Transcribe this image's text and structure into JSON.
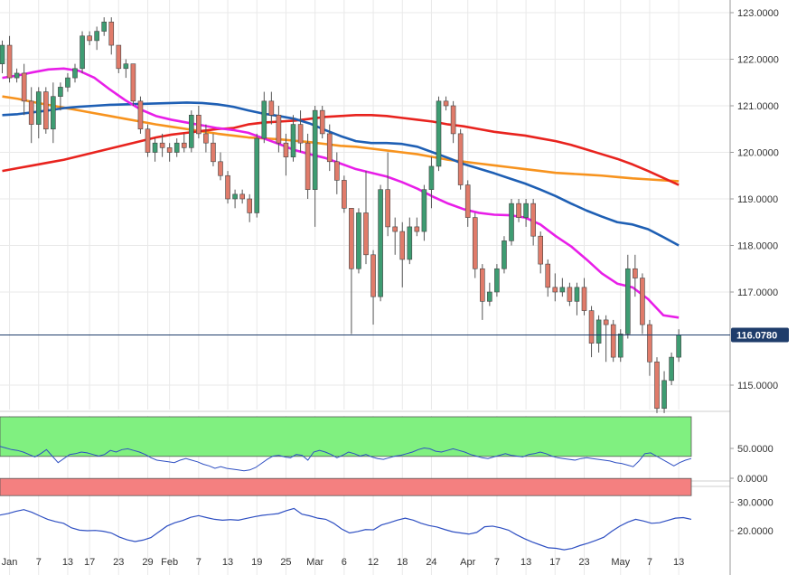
{
  "chart_data": [
    {
      "type": "candlestick",
      "title": "",
      "ylim": [
        114.4,
        123.1
      ],
      "price_ticks": [
        "123.0000",
        "122.0000",
        "121.0000",
        "120.0000",
        "119.0000",
        "118.0000",
        "117.0000",
        "115.0000"
      ],
      "price_tick_values": [
        123,
        122,
        121,
        120,
        119,
        118,
        117,
        115
      ],
      "last_price": "116.0780",
      "last_price_value": 116.078,
      "colors": {
        "up": "#3e9c72",
        "down": "#e07b6a",
        "sma20": "#e81ee8",
        "sma50": "#1e5fb4",
        "sma100": "#e8231e",
        "sma200": "#f7931e",
        "last_line": "#1f3d6b",
        "last_tag": "#1f3d6b"
      },
      "candles": [
        [
          121.9,
          122.4,
          121.7,
          122.3
        ],
        [
          122.3,
          122.5,
          121.5,
          121.6
        ],
        [
          121.6,
          121.8,
          121.5,
          121.7
        ],
        [
          121.7,
          121.9,
          120.8,
          121.1
        ],
        [
          121.1,
          121.4,
          120.2,
          120.6
        ],
        [
          120.6,
          121.4,
          120.3,
          121.3
        ],
        [
          121.3,
          121.4,
          120.4,
          120.5
        ],
        [
          120.5,
          121.5,
          120.2,
          121.2
        ],
        [
          121.2,
          121.5,
          120.9,
          121.4
        ],
        [
          121.4,
          121.7,
          121.3,
          121.6
        ],
        [
          121.6,
          121.9,
          121.5,
          121.8
        ],
        [
          121.8,
          122.6,
          121.7,
          122.5
        ],
        [
          122.5,
          122.6,
          122.3,
          122.4
        ],
        [
          122.4,
          122.7,
          122.2,
          122.6
        ],
        [
          122.6,
          122.9,
          122.5,
          122.8
        ],
        [
          122.8,
          122.9,
          122.1,
          122.3
        ],
        [
          122.3,
          122.3,
          121.7,
          121.8
        ],
        [
          121.8,
          122.0,
          121.6,
          121.9
        ],
        [
          121.9,
          121.9,
          121.0,
          121.1
        ],
        [
          121.1,
          121.2,
          120.4,
          120.5
        ],
        [
          120.5,
          120.6,
          119.9,
          120.0
        ],
        [
          120.0,
          120.3,
          119.8,
          120.2
        ],
        [
          120.2,
          120.4,
          119.9,
          120.1
        ],
        [
          120.1,
          120.2,
          119.8,
          120.0
        ],
        [
          120.0,
          120.3,
          119.9,
          120.2
        ],
        [
          120.2,
          120.4,
          120.0,
          120.1
        ],
        [
          120.1,
          120.9,
          120.0,
          120.8
        ],
        [
          120.8,
          121.0,
          120.3,
          120.4
        ],
        [
          120.4,
          120.6,
          120.0,
          120.2
        ],
        [
          120.2,
          120.4,
          119.7,
          119.8
        ],
        [
          119.8,
          120.0,
          119.4,
          119.5
        ],
        [
          119.5,
          119.6,
          118.9,
          119.0
        ],
        [
          119.0,
          119.2,
          118.8,
          119.1
        ],
        [
          119.1,
          119.2,
          118.9,
          119.0
        ],
        [
          119.0,
          119.1,
          118.5,
          118.7
        ],
        [
          118.7,
          120.4,
          118.6,
          120.3
        ],
        [
          120.3,
          121.3,
          120.2,
          121.1
        ],
        [
          121.1,
          121.3,
          120.6,
          120.8
        ],
        [
          120.8,
          121.0,
          120.0,
          120.2
        ],
        [
          120.2,
          120.4,
          119.5,
          119.9
        ],
        [
          119.9,
          120.8,
          119.8,
          120.6
        ],
        [
          120.6,
          120.9,
          120.0,
          120.2
        ],
        [
          120.2,
          120.4,
          119.0,
          119.2
        ],
        [
          119.2,
          121.0,
          118.4,
          120.9
        ],
        [
          120.9,
          121.0,
          120.3,
          120.4
        ],
        [
          120.4,
          120.6,
          119.6,
          119.8
        ],
        [
          119.8,
          120.0,
          119.1,
          119.4
        ],
        [
          119.4,
          119.5,
          118.7,
          118.8
        ],
        [
          118.8,
          118.8,
          116.1,
          117.5
        ],
        [
          117.5,
          118.8,
          117.4,
          118.7
        ],
        [
          118.7,
          119.6,
          117.6,
          117.8
        ],
        [
          117.8,
          117.9,
          116.3,
          116.9
        ],
        [
          116.9,
          119.3,
          116.8,
          119.2
        ],
        [
          119.2,
          120.0,
          118.2,
          118.4
        ],
        [
          118.4,
          118.6,
          117.8,
          118.3
        ],
        [
          118.3,
          118.5,
          117.1,
          117.7
        ],
        [
          117.7,
          118.6,
          117.6,
          118.4
        ],
        [
          118.4,
          118.6,
          118.2,
          118.3
        ],
        [
          118.3,
          119.3,
          118.1,
          119.2
        ],
        [
          119.2,
          119.9,
          118.8,
          119.7
        ],
        [
          119.7,
          121.2,
          119.6,
          121.1
        ],
        [
          121.1,
          121.2,
          120.9,
          121.0
        ],
        [
          121.0,
          121.1,
          120.2,
          120.4
        ],
        [
          120.4,
          120.5,
          119.2,
          119.3
        ],
        [
          119.3,
          119.4,
          118.4,
          118.6
        ],
        [
          118.6,
          118.7,
          117.3,
          117.5
        ],
        [
          117.5,
          117.6,
          116.4,
          116.8
        ],
        [
          116.8,
          117.2,
          116.7,
          117.0
        ],
        [
          117.0,
          117.6,
          116.9,
          117.5
        ],
        [
          117.5,
          118.2,
          117.4,
          118.1
        ],
        [
          118.1,
          119.0,
          118.0,
          118.9
        ],
        [
          118.9,
          119.0,
          118.5,
          118.6
        ],
        [
          118.6,
          119.0,
          118.4,
          118.9
        ],
        [
          118.9,
          119.0,
          118.0,
          118.2
        ],
        [
          118.2,
          118.3,
          117.4,
          117.6
        ],
        [
          117.6,
          117.7,
          116.9,
          117.1
        ],
        [
          117.1,
          117.4,
          116.8,
          117.0
        ],
        [
          117.0,
          117.3,
          116.9,
          117.1
        ],
        [
          117.1,
          117.2,
          116.7,
          116.8
        ],
        [
          116.8,
          117.2,
          116.5,
          117.1
        ],
        [
          117.1,
          117.3,
          116.5,
          116.6
        ],
        [
          116.6,
          116.7,
          115.6,
          115.9
        ],
        [
          115.9,
          116.5,
          115.7,
          116.4
        ],
        [
          116.4,
          116.5,
          115.5,
          116.3
        ],
        [
          116.3,
          116.4,
          115.5,
          115.6
        ],
        [
          115.6,
          116.2,
          115.5,
          116.1
        ],
        [
          116.1,
          117.8,
          116.0,
          117.5
        ],
        [
          117.5,
          117.8,
          116.9,
          117.3
        ],
        [
          117.3,
          117.4,
          116.1,
          116.3
        ],
        [
          116.3,
          116.4,
          115.2,
          115.5
        ],
        [
          115.5,
          115.6,
          114.4,
          114.5
        ],
        [
          114.5,
          115.3,
          114.4,
          115.1
        ],
        [
          115.1,
          115.7,
          115.0,
          115.6
        ],
        [
          115.6,
          116.2,
          115.5,
          116.08
        ]
      ],
      "sma20": [
        121.6,
        121.65,
        121.72,
        121.78,
        121.8,
        121.75,
        121.6,
        121.35,
        121.12,
        120.92,
        120.78,
        120.7,
        120.64,
        120.58,
        120.52,
        120.48,
        120.42,
        120.3,
        120.18,
        120.05,
        119.96,
        119.88,
        119.76,
        119.64,
        119.56,
        119.48,
        119.36,
        119.22,
        119.05,
        118.9,
        118.78,
        118.7,
        118.66,
        118.65,
        118.6,
        118.45,
        118.2,
        117.98,
        117.7,
        117.4,
        117.18,
        117.1,
        116.85,
        116.5,
        116.45
      ],
      "sma50": [
        120.8,
        120.82,
        120.86,
        120.9,
        120.95,
        120.98,
        121.0,
        121.02,
        121.03,
        121.04,
        121.05,
        121.06,
        121.07,
        121.06,
        121.03,
        120.98,
        120.9,
        120.83,
        120.78,
        120.72,
        120.62,
        120.48,
        120.35,
        120.24,
        120.2,
        120.2,
        120.18,
        120.12,
        120.0,
        119.88,
        119.75,
        119.65,
        119.55,
        119.44,
        119.33,
        119.2,
        119.06,
        118.9,
        118.75,
        118.62,
        118.5,
        118.45,
        118.35,
        118.18,
        118.0
      ],
      "sma100": [
        119.6,
        119.66,
        119.72,
        119.78,
        119.84,
        119.92,
        120.0,
        120.08,
        120.16,
        120.24,
        120.32,
        120.38,
        120.42,
        120.46,
        120.5,
        120.52,
        120.6,
        120.64,
        120.66,
        120.68,
        120.72,
        120.76,
        120.78,
        120.8,
        120.8,
        120.78,
        120.74,
        120.7,
        120.66,
        120.6,
        120.56,
        120.5,
        120.44,
        120.4,
        120.36,
        120.3,
        120.24,
        120.16,
        120.06,
        119.96,
        119.86,
        119.74,
        119.6,
        119.45,
        119.3
      ],
      "sma200": [
        121.2,
        121.15,
        121.08,
        121.02,
        120.96,
        120.9,
        120.84,
        120.78,
        120.72,
        120.66,
        120.6,
        120.55,
        120.5,
        120.45,
        120.4,
        120.36,
        120.32,
        120.3,
        120.28,
        120.25,
        120.22,
        120.18,
        120.14,
        120.12,
        120.08,
        120.04,
        120.0,
        119.96,
        119.9,
        119.84,
        119.8,
        119.76,
        119.72,
        119.68,
        119.64,
        119.6,
        119.56,
        119.54,
        119.52,
        119.5,
        119.47,
        119.44,
        119.42,
        119.4,
        119.38
      ]
    },
    {
      "type": "line",
      "title": "",
      "ylim": [
        0,
        100
      ],
      "ticks": [
        "50.0000",
        "0.0000"
      ],
      "tick_values": [
        50,
        0
      ],
      "overbought": 70,
      "oversold": 30,
      "colors": {
        "line": "#2e4fc2",
        "overbought_band": "#80f080",
        "oversold_band": "#f48080"
      },
      "values": [
        62,
        60,
        58,
        57,
        55,
        52,
        49,
        53,
        58,
        50,
        42,
        47,
        52,
        53,
        55,
        54,
        52,
        50,
        52,
        57,
        55,
        58,
        59,
        57,
        55,
        52,
        48,
        45,
        44,
        43,
        42,
        45,
        47,
        45,
        43,
        40,
        38,
        35,
        37,
        35,
        34,
        33,
        32,
        33,
        36,
        41,
        46,
        50,
        51,
        49,
        48,
        52,
        51,
        45,
        55,
        57,
        55,
        52,
        48,
        51,
        55,
        53,
        50,
        52,
        49,
        47,
        46,
        48,
        50,
        51,
        53,
        55,
        58,
        60,
        59,
        56,
        55,
        57,
        59,
        57,
        55,
        52,
        50,
        48,
        47,
        49,
        51,
        53,
        51,
        50,
        49,
        52,
        53,
        55,
        53,
        50,
        48,
        47,
        46,
        45,
        47,
        48,
        47,
        46,
        45,
        44,
        42,
        41,
        39,
        37,
        44,
        53,
        54,
        50,
        46,
        42,
        38,
        42,
        45,
        47
      ],
      "last_value": 47
    },
    {
      "type": "line",
      "title": "",
      "ylim": [
        11.5,
        33.0
      ],
      "ticks": [
        "30.0000",
        "20.0000"
      ],
      "tick_values": [
        30,
        20
      ],
      "colors": {
        "line": "#2e4fc2"
      },
      "values": [
        25.5,
        26.0,
        26.8,
        27.4,
        26.5,
        25.2,
        24.0,
        23.2,
        22.6,
        21.0,
        20.2,
        20.0,
        20.1,
        19.8,
        19.2,
        17.8,
        16.8,
        16.2,
        16.7,
        17.6,
        19.6,
        21.6,
        22.8,
        23.6,
        24.7,
        25.3,
        24.6,
        24.0,
        23.7,
        23.9,
        23.7,
        24.3,
        24.9,
        25.4,
        25.7,
        26.0,
        27.0,
        27.8,
        25.8,
        25.2,
        24.4,
        24.0,
        22.6,
        20.6,
        19.2,
        19.7,
        20.4,
        20.3,
        22.0,
        22.8,
        23.7,
        24.4,
        23.7,
        22.6,
        21.8,
        21.3,
        20.4,
        19.6,
        19.2,
        18.8,
        19.4,
        21.4,
        21.6,
        21.0,
        20.2,
        18.6,
        17.2,
        16.0,
        15.0,
        14.0,
        13.8,
        13.3,
        13.8,
        14.8,
        15.6,
        16.6,
        17.7,
        19.8,
        21.6,
        23.0,
        24.0,
        23.4,
        22.6,
        22.8,
        23.6,
        24.4,
        24.6,
        24.0
      ]
    }
  ],
  "x_axis": {
    "labels": [
      "Jan",
      "7",
      "13",
      "17",
      "23",
      "29",
      "Feb",
      "7",
      "13",
      "19",
      "25",
      "Mar",
      "6",
      "12",
      "18",
      "24",
      "Apr",
      "7",
      "13",
      "17",
      "23",
      "May",
      "7",
      "13"
    ],
    "label_positions": [
      1,
      5,
      9,
      12,
      16,
      20,
      23,
      27,
      31,
      35,
      39,
      43,
      47,
      51,
      55,
      59,
      64,
      68,
      72,
      76,
      80,
      85,
      89,
      93
    ]
  }
}
